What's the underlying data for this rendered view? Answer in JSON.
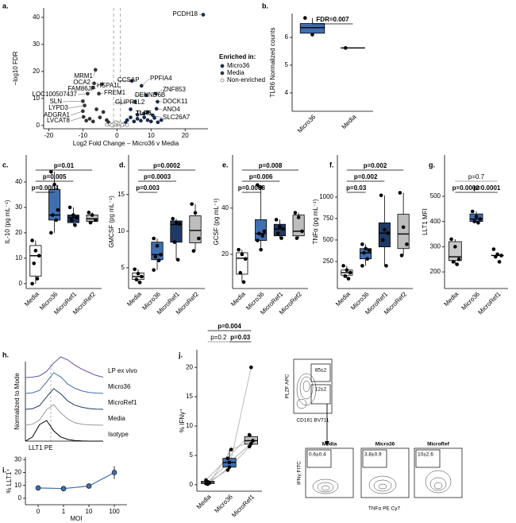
{
  "chart_data": [
    {
      "panel": "a.",
      "type": "scatter",
      "x_label": "Log2 Fold Change – Micro36 v Media",
      "y_label": "−log10 FDR",
      "xlim": [
        -21.5,
        26.7
      ],
      "ylim": [
        -1.2,
        43.5
      ],
      "xticks": [
        -20,
        -10,
        0,
        10,
        20
      ],
      "yticks": [
        0,
        10,
        20,
        30,
        40
      ],
      "threshold_lines": [
        -1,
        1
      ],
      "legend_title": "Enriched in:",
      "series": [
        {
          "name": "Micro36",
          "color": "#1b2a4a",
          "marker": "filled",
          "x": [
            25.3,
            4.4,
            7.2,
            11.4,
            11.9,
            11.6,
            10.5,
            8.6,
            5.3,
            7.9,
            3,
            4,
            5,
            6,
            7,
            8,
            9,
            10,
            11,
            12,
            2.5,
            6,
            9,
            4,
            13
          ],
          "y": [
            41,
            16.5,
            14.7,
            11.8,
            8.8,
            6.2,
            3.8,
            11.2,
            8.8,
            4.4,
            2,
            3,
            1.5,
            2.5,
            1.8,
            3,
            2,
            1.5,
            2.8,
            1.2,
            1,
            4,
            5,
            6,
            2
          ]
        },
        {
          "name": "Media",
          "color": "#333333",
          "marker": "filled",
          "x": [
            -6.3,
            -6.7,
            -4.4,
            -7,
            -8.6,
            -5.3,
            -10,
            -9.5,
            -10,
            -9.8,
            -3,
            -5,
            -7,
            -8,
            -4,
            -6,
            -2.5,
            -9
          ],
          "y": [
            20.6,
            15.6,
            15.3,
            14,
            11.8,
            11.8,
            9,
            7.4,
            5.3,
            3.2,
            2,
            3,
            1.5,
            2.5,
            5,
            6,
            1.2,
            1.8
          ]
        },
        {
          "name": "Non-enriched",
          "color": "#777777",
          "marker": "open",
          "x": [
            0,
            0.5,
            -0.5,
            1,
            -1,
            2,
            -2,
            0.2,
            -0.3,
            1.5,
            -1.5,
            3,
            -3
          ],
          "y": [
            0.2,
            0.5,
            0.3,
            0.8,
            0.6,
            0.3,
            0.4,
            1,
            1.2,
            0.2,
            0.1,
            0.2,
            0.3
          ]
        }
      ],
      "annotations": [
        {
          "text": "PCDH18",
          "x": 25.3,
          "y": 41
        },
        {
          "text": "MRM1",
          "x": -6.3,
          "y": 20.6
        },
        {
          "text": "OCA2",
          "x": -6.7,
          "y": 15.6
        },
        {
          "text": "FAM86JP",
          "x": -7,
          "y": 14
        },
        {
          "text": "LOC100507437",
          "x": -8.6,
          "y": 11.8
        },
        {
          "text": "SLN",
          "x": -10,
          "y": 9
        },
        {
          "text": "LYPD3",
          "x": -9.5,
          "y": 7.4
        },
        {
          "text": "ADGRA1",
          "x": -10,
          "y": 5.3
        },
        {
          "text": "LVCAT8",
          "x": -9.8,
          "y": 3.2
        },
        {
          "text": "HSPA1L",
          "x": -4.4,
          "y": 15.3
        },
        {
          "text": "FREM1",
          "x": -5.3,
          "y": 11.8
        },
        {
          "text": "CCSAP",
          "x": 4.4,
          "y": 16.5
        },
        {
          "text": "GLIPR1L2",
          "x": 5.3,
          "y": 8.8
        },
        {
          "text": "TLR6",
          "x": 7.9,
          "y": 4.4
        },
        {
          "text": "PPFIA4",
          "x": 7.2,
          "y": 14.7
        },
        {
          "text": "DENND6B",
          "x": 8.6,
          "y": 11.2
        },
        {
          "text": "ZNF853",
          "x": 11.4,
          "y": 11.8
        },
        {
          "text": "DOCK11",
          "x": 11.9,
          "y": 8.8
        },
        {
          "text": "ANO4",
          "x": 11.6,
          "y": 6.2
        },
        {
          "text": "SLC26A7",
          "x": 10.5,
          "y": 3.8
        }
      ]
    },
    {
      "panel": "b.",
      "type": "box",
      "y_label": "TLR6 Normalized counts",
      "categories": [
        "Micro36",
        "Media"
      ],
      "colors": [
        "#3f6fb0",
        "#ffffff"
      ],
      "ylim": [
        3.34,
        6.86
      ],
      "yticks": [
        4,
        5,
        6
      ],
      "boxes": [
        {
          "stats": [
            6.1,
            6.15,
            6.35,
            6.5,
            6.7
          ],
          "points": [
            6.7,
            6.1
          ]
        },
        {
          "stats": [
            5.62,
            5.62,
            5.62,
            5.62,
            5.62
          ],
          "points": [
            5.62
          ]
        }
      ],
      "comparisons": [
        {
          "groups": [
            "Micro36",
            "Media"
          ],
          "label": "FDR=0.007",
          "color": "#000000"
        }
      ]
    },
    {
      "panel": "c.",
      "type": "box",
      "y_label": "IL-10 (pg mL⁻¹)",
      "categories": [
        "Media",
        "Micro36",
        "MicroRef1",
        "MicroRef2"
      ],
      "colors": [
        "#ffffff",
        "#3f6fb0",
        "#1f3a66",
        "#bdbdbd"
      ],
      "ylim": [
        -1.9,
        50.6
      ],
      "yticks": [
        0,
        10,
        20,
        30,
        40
      ],
      "boxes": [
        {
          "stats": [
            0,
            3,
            11,
            15,
            17
          ],
          "points": [
            17,
            13,
            11,
            8,
            2,
            0
          ]
        },
        {
          "stats": [
            20,
            25,
            27,
            37,
            44
          ],
          "points": [
            44,
            39,
            29,
            27,
            25,
            20
          ]
        },
        {
          "stats": [
            23,
            24,
            26,
            27,
            30
          ],
          "points": [
            30,
            27,
            26,
            25,
            23
          ]
        },
        {
          "stats": [
            24,
            24.5,
            25.5,
            27,
            28
          ],
          "points": [
            28,
            27,
            25,
            24
          ]
        }
      ],
      "comparisons": [
        {
          "groups": [
            "Media",
            "Micro36"
          ],
          "label": "p=0.0004",
          "color": "#000000"
        },
        {
          "groups": [
            "Media",
            "MicroRef1"
          ],
          "label": "p=0.005",
          "color": "#000000"
        },
        {
          "groups": [
            "Media",
            "MicroRef2"
          ],
          "label": "p=0.01",
          "color": "#000000"
        }
      ]
    },
    {
      "panel": "d.",
      "type": "box",
      "y_label": "GMCSF (pg mL⁻¹)",
      "categories": [
        "Media",
        "Micro36",
        "MicroRef1",
        "MicroRef2"
      ],
      "colors": [
        "#ffffff",
        "#3f6fb0",
        "#1f3a66",
        "#bdbdbd"
      ],
      "ylim": [
        2.17,
        20.4
      ],
      "yticks": [
        5,
        10,
        15
      ],
      "boxes": [
        {
          "stats": [
            3,
            3.4,
            3.8,
            4.3,
            4.8
          ],
          "points": [
            4.8,
            4.2,
            3.8,
            3.4,
            3
          ]
        },
        {
          "stats": [
            4.7,
            6.1,
            6.8,
            8.5,
            9
          ],
          "points": [
            9,
            8,
            6.8,
            6.5,
            6,
            4.7
          ]
        },
        {
          "stats": [
            6.1,
            8.5,
            10.9,
            11.4,
            11.7
          ],
          "points": [
            11.7,
            11.2,
            11,
            8.5,
            6.1
          ]
        },
        {
          "stats": [
            7.3,
            8.4,
            10.1,
            12.1,
            13.7
          ],
          "points": [
            13.7,
            12.5,
            9,
            7.3
          ]
        }
      ],
      "comparisons": [
        {
          "groups": [
            "Media",
            "Micro36"
          ],
          "label": "p=0.003",
          "color": "#000000"
        },
        {
          "groups": [
            "Media",
            "MicroRef1"
          ],
          "label": "p=0.0003",
          "color": "#000000"
        },
        {
          "groups": [
            "Media",
            "MicroRef2"
          ],
          "label": "p=0.0002",
          "color": "#000000"
        }
      ]
    },
    {
      "panel": "e.",
      "type": "box",
      "y_label": "GCSF (pg mL⁻¹)",
      "categories": [
        "Media",
        "Micro36",
        "MicroRef1",
        "MicroRef2"
      ],
      "colors": [
        "#ffffff",
        "#3f6fb0",
        "#1f3a66",
        "#bdbdbd"
      ],
      "ylim": [
        5.2,
        63
      ],
      "yticks": [
        20,
        40
      ],
      "boxes": [
        {
          "stats": [
            8,
            11.4,
            18.3,
            20.7,
            22
          ],
          "points": [
            22,
            20,
            18,
            12,
            8
          ]
        },
        {
          "stats": [
            22,
            26,
            29,
            35,
            50
          ],
          "points": [
            50,
            49,
            30,
            29,
            28,
            26,
            22
          ]
        },
        {
          "stats": [
            27,
            28,
            31,
            33,
            35
          ],
          "points": [
            35,
            32,
            31,
            29,
            27
          ]
        },
        {
          "stats": [
            27,
            28,
            30,
            37,
            38
          ],
          "points": [
            38,
            36,
            30,
            27
          ]
        }
      ],
      "comparisons": [
        {
          "groups": [
            "Media",
            "Micro36"
          ],
          "label": "p=0.0008",
          "color": "#000000"
        },
        {
          "groups": [
            "Media",
            "MicroRef1"
          ],
          "label": "p=0.006",
          "color": "#000000"
        },
        {
          "groups": [
            "Media",
            "MicroRef2"
          ],
          "label": "p=0.008",
          "color": "#000000"
        }
      ]
    },
    {
      "panel": "f.",
      "type": "box",
      "y_label": "TNFα (pg mL⁻¹)",
      "categories": [
        "Media",
        "Micro36",
        "MicroRef1",
        "MicroRef2"
      ],
      "colors": [
        "#ffffff",
        "#3f6fb0",
        "#1f3a66",
        "#bdbdbd"
      ],
      "ylim": [
        -65,
        1490
      ],
      "yticks": [
        250,
        500,
        750,
        1000
      ],
      "boxes": [
        {
          "stats": [
            50,
            90,
            120,
            150,
            200
          ],
          "points": [
            200,
            150,
            120,
            80,
            50
          ]
        },
        {
          "stats": [
            200,
            280,
            350,
            400,
            450
          ],
          "points": [
            450,
            400,
            380,
            350,
            280,
            200
          ]
        },
        {
          "stats": [
            200,
            420,
            580,
            700,
            1020
          ],
          "points": [
            1020,
            620,
            580,
            500,
            200
          ]
        },
        {
          "stats": [
            320,
            400,
            570,
            800,
            1050
          ],
          "points": [
            1050,
            650,
            450,
            320
          ]
        }
      ],
      "comparisons": [
        {
          "groups": [
            "Media",
            "Micro36"
          ],
          "label": "p=0.03",
          "color": "#000000"
        },
        {
          "groups": [
            "Media",
            "MicroRef1"
          ],
          "label": "p=0.002",
          "color": "#000000"
        },
        {
          "groups": [
            "Media",
            "MicroRef2"
          ],
          "label": "p=0.002",
          "color": "#000000"
        }
      ]
    },
    {
      "panel": "g.",
      "type": "box",
      "y_label": "LLT1 MFI",
      "categories": [
        "Media",
        "Micro36",
        "MicroRef1"
      ],
      "colors": [
        "#c8c8c8",
        "#3f6fb0",
        "#ffffff"
      ],
      "ylim": [
        134,
        664
      ],
      "yticks": [
        200,
        300,
        400,
        500
      ],
      "boxes": [
        {
          "stats": [
            230,
            245,
            260,
            320,
            330
          ],
          "points": [
            330,
            300,
            250,
            240,
            230
          ]
        },
        {
          "stats": [
            395,
            400,
            410,
            430,
            440
          ],
          "points": [
            440,
            420,
            410,
            400,
            395
          ]
        },
        {
          "stats": [
            265,
            265,
            265,
            265,
            265
          ],
          "points": [
            290,
            270,
            265,
            260,
            240
          ]
        }
      ],
      "comparisons": [
        {
          "groups": [
            "Media",
            "Micro36"
          ],
          "label": "p=0.0002",
          "color": "#000000"
        },
        {
          "groups": [
            "Micro36",
            "MicroRef1"
          ],
          "label": "p=0.0001",
          "color": "#000000"
        },
        {
          "groups": [
            "Media",
            "MicroRef1"
          ],
          "label": "p=0.7",
          "color": "#888888"
        }
      ]
    },
    {
      "panel": "h.",
      "type": "density",
      "x_label": "LLT1 PE",
      "y_label": "Normalized to Mode",
      "x": [
        0,
        1,
        2,
        3,
        4,
        5,
        6,
        7,
        8,
        9,
        10,
        11
      ],
      "ylim": [
        0,
        100
      ],
      "series": [
        {
          "name": "LP ex vivo",
          "color": "#6b4fa0",
          "values": [
            0,
            2,
            8,
            30,
            70,
            100,
            85,
            60,
            40,
            25,
            10,
            2
          ]
        },
        {
          "name": "Micro36",
          "color": "#3f6fb0",
          "values": [
            0,
            3,
            15,
            55,
            100,
            80,
            45,
            25,
            12,
            5,
            2,
            0
          ]
        },
        {
          "name": "MicroRef1",
          "color": "#1f3a66",
          "values": [
            0,
            3,
            18,
            60,
            100,
            75,
            40,
            20,
            10,
            4,
            1,
            0
          ]
        },
        {
          "name": "Media",
          "color": "#999999",
          "values": [
            0,
            5,
            25,
            75,
            100,
            60,
            30,
            12,
            5,
            2,
            1,
            0
          ]
        },
        {
          "name": "Isotype",
          "color": "#000000",
          "values": [
            0,
            20,
            80,
            100,
            50,
            20,
            8,
            3,
            1,
            0,
            0,
            0
          ]
        }
      ]
    },
    {
      "panel": "i.",
      "type": "line",
      "y_label": "% LLT1⁺",
      "x_label": "MOI",
      "categories": [
        "0",
        "1",
        "10",
        "100"
      ],
      "values": [
        8,
        7.5,
        9.5,
        20
      ],
      "errors": [
        0.6,
        0.5,
        0.8,
        5
      ],
      "color": "#3f6fb0",
      "ylim": [
        -5,
        32
      ],
      "yticks": [
        0,
        10,
        20,
        30
      ]
    },
    {
      "panel": "j.",
      "type": "box",
      "paired": true,
      "y_label": "% IFNγ⁺",
      "categories": [
        "Media",
        "Micro36",
        "MicroRef1"
      ],
      "colors": [
        "#ffffff",
        "#3f6fb0",
        "#bdbdbd"
      ],
      "ylim": [
        -1.1,
        23
      ],
      "yticks": [
        0,
        5,
        10,
        15,
        20
      ],
      "boxes": [
        {
          "stats": [
            0.1,
            0.2,
            0.4,
            0.6,
            0.8
          ],
          "points": [
            0.2,
            0.5,
            0.3,
            0.8,
            0.1
          ]
        },
        {
          "stats": [
            2.5,
            3,
            3.8,
            4.5,
            6
          ],
          "points": [
            2.5,
            3.8,
            6,
            4.5,
            3
          ]
        },
        {
          "stats": [
            6.5,
            6.9,
            7.5,
            8.2,
            8.5
          ],
          "points": [
            6.5,
            7,
            7.5,
            8.5,
            20
          ]
        }
      ],
      "comparisons": [
        {
          "groups": [
            "Media",
            "Micro36"
          ],
          "label": "p=0.2",
          "color": "#888888"
        },
        {
          "groups": [
            "Micro36",
            "MicroRef1"
          ],
          "label": "p=0.03",
          "color": "#000000"
        },
        {
          "groups": [
            "Media",
            "MicroRef1"
          ],
          "label": "p=0.004",
          "color": "#000000"
        }
      ]
    }
  ],
  "flow": {
    "gate": {
      "y_label": "PLZF APC",
      "x_label": "CD161 BV711",
      "gates": [
        "85±2",
        "12±2"
      ]
    },
    "ifn": {
      "titles": [
        "Media",
        "Micro36",
        "MicroRef"
      ],
      "gates": [
        "0.6±0.4",
        "3.8±0.9",
        "10±2.6"
      ],
      "y_label": "IFNγ FITC",
      "x_label": "TNFα PE Cy7"
    }
  }
}
